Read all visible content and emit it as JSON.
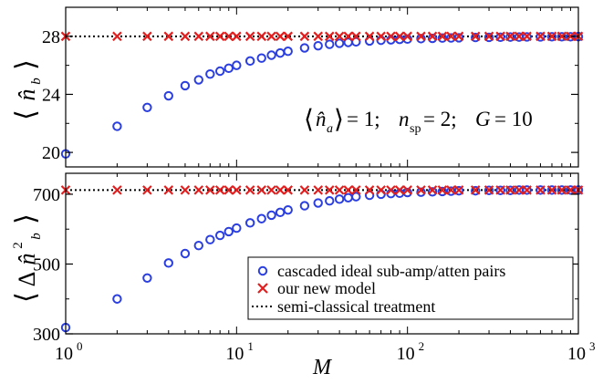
{
  "chart_data": [
    {
      "type": "scatter",
      "xscale": "log",
      "xlim": [
        1,
        1000
      ],
      "ylim": [
        19,
        30
      ],
      "yticks": [
        20,
        24,
        28
      ],
      "ytick_labels": [
        "20",
        "24",
        "28"
      ],
      "ylabel": "⟨n̂b⟩",
      "annotation": "⟨n̂a⟩= 1; nsp= 2; G = 10",
      "series": [
        {
          "name": "cascaded ideal sub-amp/atten pairs",
          "marker": "circle",
          "color": "#2b3fe0",
          "x": [
            1,
            2,
            3,
            4,
            5,
            6,
            7,
            8,
            9,
            10,
            12,
            14,
            16,
            18,
            20,
            25,
            30,
            35,
            40,
            45,
            50,
            60,
            70,
            80,
            90,
            100,
            120,
            140,
            160,
            180,
            200,
            250,
            300,
            350,
            400,
            450,
            500,
            600,
            700,
            800,
            900,
            1000
          ],
          "y": [
            19.9,
            21.8,
            23.1,
            23.9,
            24.6,
            25.0,
            25.4,
            25.6,
            25.8,
            26.0,
            26.3,
            26.5,
            26.7,
            26.85,
            26.97,
            27.2,
            27.35,
            27.45,
            27.52,
            27.58,
            27.62,
            27.68,
            27.73,
            27.76,
            27.79,
            27.81,
            27.84,
            27.86,
            27.88,
            27.89,
            27.9,
            27.92,
            27.93,
            27.94,
            27.95,
            27.95,
            27.96,
            27.96,
            27.97,
            27.97,
            27.97,
            27.98
          ]
        },
        {
          "name": "our new model",
          "marker": "x",
          "color": "#e02020",
          "x": [
            1,
            2,
            3,
            4,
            5,
            6,
            7,
            8,
            9,
            10,
            12,
            14,
            16,
            18,
            20,
            25,
            30,
            35,
            40,
            45,
            50,
            60,
            70,
            80,
            90,
            100,
            120,
            140,
            160,
            180,
            200,
            250,
            300,
            350,
            400,
            450,
            500,
            600,
            700,
            800,
            900,
            1000
          ],
          "y": [
            28,
            28,
            28,
            28,
            28,
            28,
            28,
            28,
            28,
            28,
            28,
            28,
            28,
            28,
            28,
            28,
            28,
            28,
            28,
            28,
            28,
            28,
            28,
            28,
            28,
            28,
            28,
            28,
            28,
            28,
            28,
            28,
            28,
            28,
            28,
            28,
            28,
            28,
            28,
            28,
            28,
            28
          ]
        },
        {
          "name": "semi-classical treatment",
          "line": "dotted",
          "color": "#000000",
          "x": [
            1,
            1000
          ],
          "y": [
            28,
            28
          ]
        }
      ]
    },
    {
      "type": "scatter",
      "xscale": "log",
      "xlim": [
        1,
        1000
      ],
      "ylim": [
        300,
        760
      ],
      "yticks": [
        300,
        500,
        700
      ],
      "ytick_labels": [
        "300",
        "500",
        "700"
      ],
      "xticks": [
        1,
        10,
        100,
        1000
      ],
      "xtick_labels": [
        [
          "10",
          "0"
        ],
        [
          "10",
          "1"
        ],
        [
          "10",
          "2"
        ],
        [
          "10",
          "3"
        ]
      ],
      "xlabel": "M",
      "ylabel": "⟨Δn̂²b⟩",
      "legend": {
        "position": "lower-right",
        "entries": [
          {
            "label": "cascaded ideal sub-amp/atten pairs",
            "marker": "circle",
            "color": "#2b3fe0"
          },
          {
            "label": "our new model",
            "marker": "x",
            "color": "#e02020"
          },
          {
            "label": "semi-classical treatment",
            "line": "dotted",
            "color": "#000000"
          }
        ]
      },
      "series": [
        {
          "name": "cascaded ideal sub-amp/atten pairs",
          "marker": "circle",
          "color": "#2b3fe0",
          "x": [
            1,
            2,
            3,
            4,
            5,
            6,
            7,
            8,
            9,
            10,
            12,
            14,
            16,
            18,
            20,
            25,
            30,
            35,
            40,
            45,
            50,
            60,
            70,
            80,
            90,
            100,
            120,
            140,
            160,
            180,
            200,
            250,
            300,
            350,
            400,
            450,
            500,
            600,
            700,
            800,
            900,
            1000
          ],
          "y": [
            318,
            400,
            460,
            503,
            530,
            553,
            570,
            582,
            593,
            603,
            618,
            630,
            640,
            648,
            655,
            667,
            675,
            681,
            686,
            690,
            693,
            697,
            700,
            702,
            703,
            705,
            706,
            707,
            708,
            709,
            710,
            710,
            711,
            711,
            711,
            712,
            712,
            712,
            712,
            712,
            712,
            712
          ]
        },
        {
          "name": "our new model",
          "marker": "x",
          "color": "#e02020",
          "x": [
            1,
            2,
            3,
            4,
            5,
            6,
            7,
            8,
            9,
            10,
            12,
            14,
            16,
            18,
            20,
            25,
            30,
            35,
            40,
            45,
            50,
            60,
            70,
            80,
            90,
            100,
            120,
            140,
            160,
            180,
            200,
            250,
            300,
            350,
            400,
            450,
            500,
            600,
            700,
            800,
            900,
            1000
          ],
          "y": [
            712,
            712,
            712,
            712,
            712,
            712,
            712,
            712,
            712,
            712,
            712,
            712,
            712,
            712,
            712,
            712,
            712,
            712,
            712,
            712,
            712,
            712,
            712,
            712,
            712,
            712,
            712,
            712,
            712,
            712,
            712,
            712,
            712,
            712,
            712,
            712,
            712,
            712,
            712,
            712,
            712,
            712
          ]
        },
        {
          "name": "semi-classical treatment",
          "line": "dotted",
          "color": "#000000",
          "x": [
            1,
            1000
          ],
          "y": [
            712,
            712
          ]
        }
      ]
    }
  ]
}
